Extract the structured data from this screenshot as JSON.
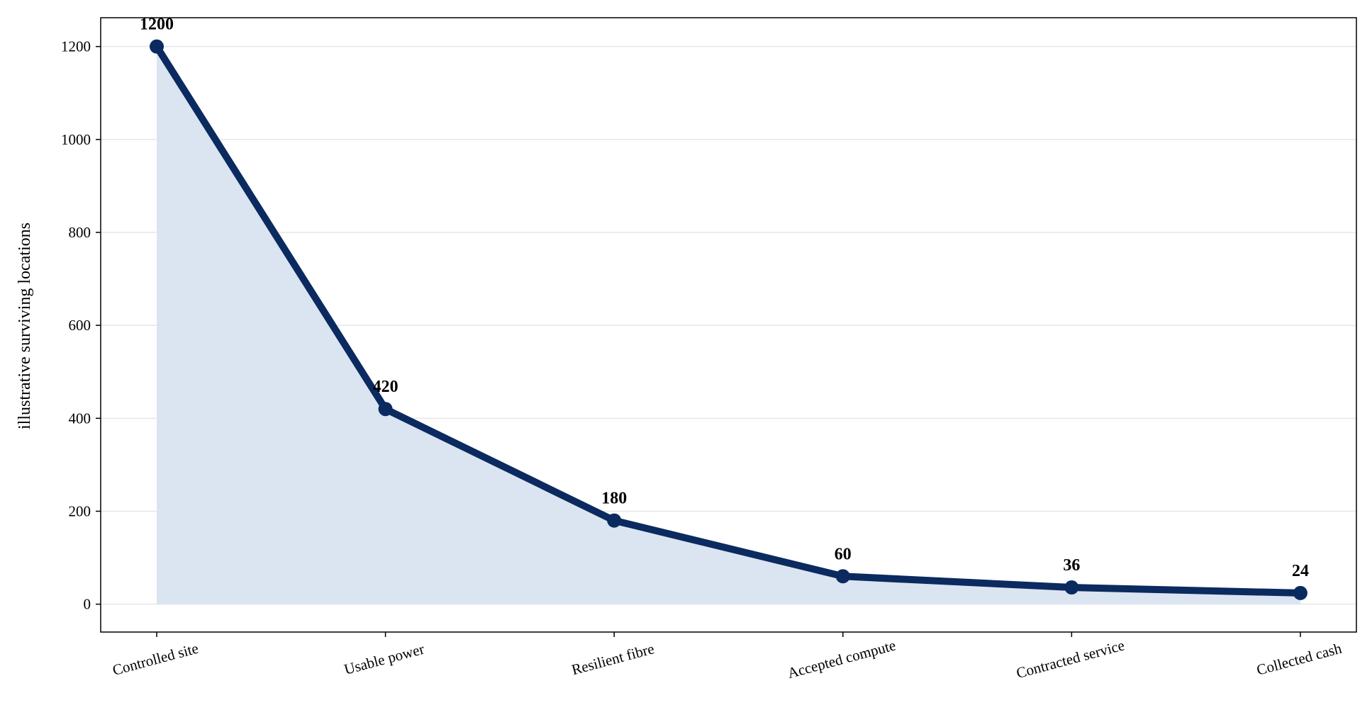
{
  "chart_data": {
    "type": "line",
    "y_label": "illustrative surviving locations",
    "categories": [
      "Controlled site",
      "Usable power",
      "Resilient fibre",
      "Accepted compute",
      "Contracted service",
      "Collected cash"
    ],
    "values": [
      1200,
      420,
      180,
      60,
      36,
      24
    ],
    "color": "#0b2a5f",
    "fill_color": "#dbe4f1",
    "ylim": [
      -60,
      1262
    ],
    "yticks": [
      0,
      200,
      400,
      600,
      800,
      1000,
      1200
    ],
    "grid": true
  }
}
